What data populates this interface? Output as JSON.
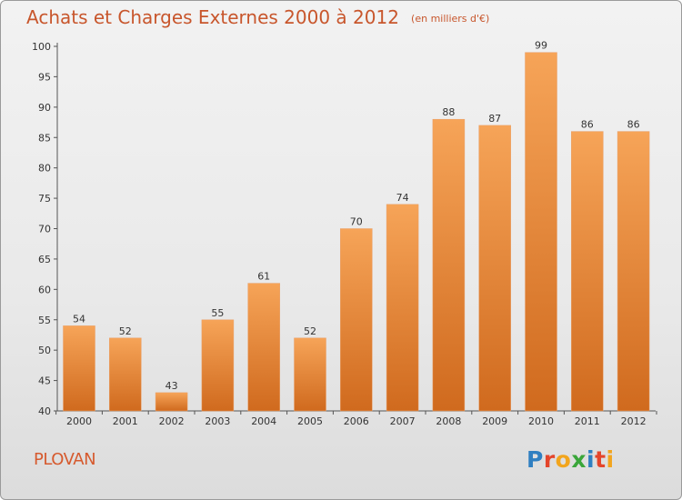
{
  "header": {
    "title": "Achats et Charges Externes 2000 à 2012",
    "subtitle": "(en milliers d'€)"
  },
  "footer": {
    "location": "PLOVAN",
    "logo_text": "Proxiti",
    "logo_colors": [
      "#2f7fc1",
      "#e4452b",
      "#f2a51d",
      "#3aa63a",
      "#2f7fc1",
      "#e4452b",
      "#f2a51d"
    ]
  },
  "colors": {
    "bar_top": "#f6a458",
    "bar_bottom": "#d06a1e",
    "title": "#c8562c"
  },
  "chart_data": {
    "type": "bar",
    "categories": [
      "2000",
      "2001",
      "2002",
      "2003",
      "2004",
      "2005",
      "2006",
      "2007",
      "2008",
      "2009",
      "2010",
      "2011",
      "2012"
    ],
    "values": [
      54,
      52,
      43,
      55,
      61,
      52,
      70,
      74,
      88,
      87,
      99,
      86,
      86
    ],
    "ylim": [
      40,
      100
    ],
    "yticks": [
      40,
      45,
      50,
      55,
      60,
      65,
      70,
      75,
      80,
      85,
      90,
      95,
      100
    ],
    "grid": false,
    "title": "Achats et Charges Externes 2000 à 2012",
    "xlabel": "",
    "ylabel": ""
  }
}
